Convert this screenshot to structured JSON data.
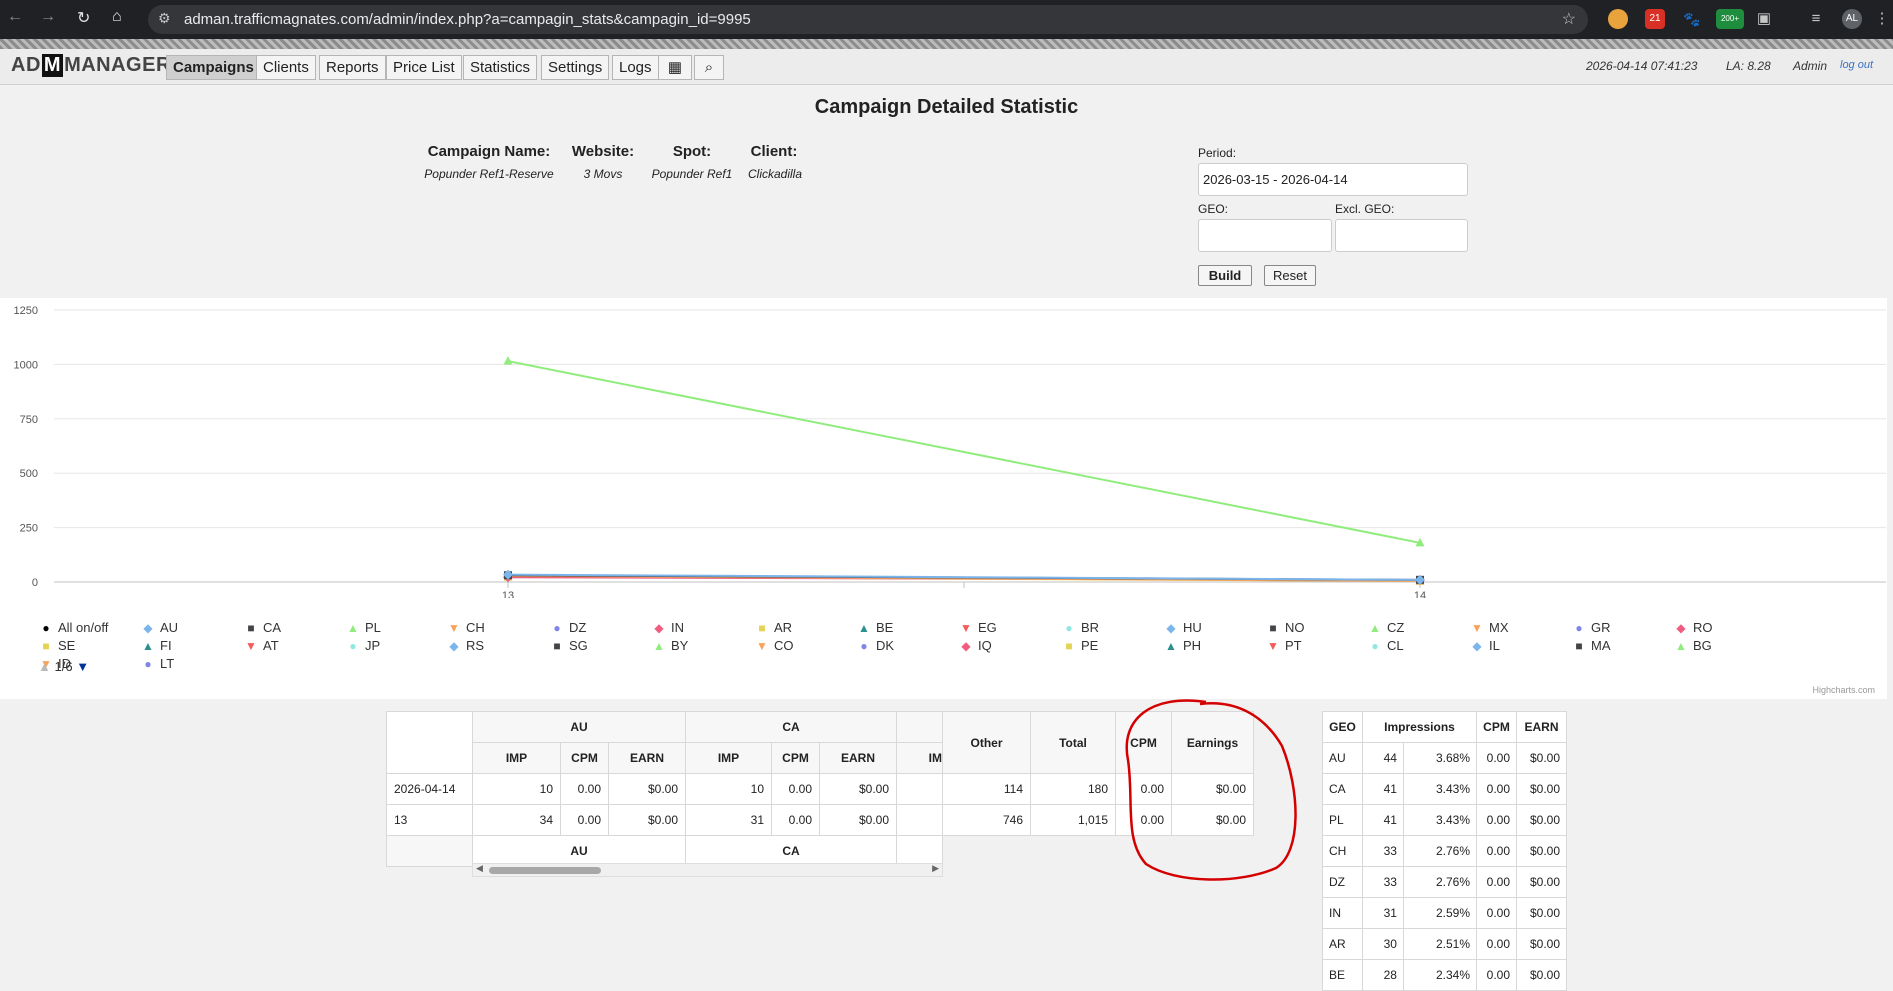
{
  "browser": {
    "url": "adman.trafficmagnates.com/admin/index.php?a=campagin_stats&campagin_id=9995",
    "ext_badge_1": "21",
    "ext_badge_2": "200+",
    "profile": "AL"
  },
  "app": {
    "logo_pre": "AD",
    "logo_m": "M",
    "logo_post": "MANAGER",
    "nav": [
      "Campaigns",
      "Clients",
      "Reports",
      "Price List",
      "Statistics",
      "Settings",
      "Logs"
    ],
    "active_nav": "Campaigns",
    "datetime": "2026-04-14 07:41:23",
    "la": "LA: 8.28",
    "user": "Admin",
    "logout": "log out"
  },
  "page": {
    "title": "Campaign Detailed Statistic",
    "info": [
      {
        "label": "Campaign Name:",
        "value": "Popunder Ref1-Reserve"
      },
      {
        "label": "Website:",
        "value": "3 Movs"
      },
      {
        "label": "Spot:",
        "value": "Popunder Ref1"
      },
      {
        "label": "Client:",
        "value": "Clickadilla"
      }
    ],
    "filters": {
      "period_label": "Period:",
      "period_value": "2026-03-15 - 2026-04-14",
      "geo_label": "GEO:",
      "geo_value": "",
      "excl_geo_label": "Excl. GEO:",
      "excl_geo_value": "",
      "build_label": "Build",
      "reset_label": "Reset"
    }
  },
  "chart_data": {
    "type": "line",
    "x": [
      "13",
      "14"
    ],
    "y_ticks": [
      0,
      250,
      500,
      750,
      1000,
      1250
    ],
    "ylim": [
      0,
      1250
    ],
    "series": [
      {
        "name": "Total",
        "values": [
          1015,
          180
        ],
        "color": "#90ed7d",
        "symbol": "triangle"
      },
      {
        "name": "AU",
        "values": [
          34,
          10
        ],
        "color": "#7cb5ec",
        "symbol": "diamond"
      },
      {
        "name": "CA",
        "values": [
          31,
          10
        ],
        "color": "#434348",
        "symbol": "square"
      },
      {
        "name": "CH",
        "values": [
          28,
          5
        ],
        "color": "#f7a35c",
        "symbol": "triangle"
      },
      {
        "name": "IN",
        "values": [
          22,
          9
        ],
        "color": "#f15c80",
        "symbol": "diamond"
      },
      {
        "name": "AR",
        "values": [
          25,
          5
        ],
        "color": "#e4d354",
        "symbol": "square"
      }
    ],
    "legend_all": "All on/off",
    "legend_items": [
      "AU",
      "CA",
      "PL",
      "CH",
      "DZ",
      "IN",
      "AR",
      "BE",
      "EG",
      "BR",
      "HU",
      "NO",
      "CZ",
      "MX",
      "GR",
      "RO",
      "SE",
      "FI",
      "AT",
      "JP",
      "RS",
      "SG",
      "BY",
      "CO",
      "DK",
      "IQ",
      "PE",
      "PH",
      "PT",
      "CL",
      "IL",
      "MA",
      "BG",
      "ID",
      "LT"
    ],
    "legend_colors": [
      "#7cb5ec",
      "#434348",
      "#90ed7d",
      "#f7a35c",
      "#8085e9",
      "#f15c80",
      "#e4d354",
      "#2b908f",
      "#f45b5b",
      "#91e8e1",
      "#7cb5ec",
      "#434348",
      "#90ed7d",
      "#f7a35c",
      "#8085e9",
      "#f15c80",
      "#e4d354",
      "#2b908f",
      "#f45b5b",
      "#91e8e1",
      "#7cb5ec",
      "#434348",
      "#90ed7d",
      "#f7a35c",
      "#8085e9",
      "#f15c80",
      "#e4d354",
      "#2b908f",
      "#f45b5b",
      "#91e8e1",
      "#7cb5ec",
      "#434348",
      "#90ed7d",
      "#f7a35c",
      "#8085e9"
    ],
    "legend_symbols": [
      "◆",
      "■",
      "▲",
      "▼",
      "●",
      "◆",
      "■",
      "▲",
      "▼",
      "●",
      "◆",
      "■",
      "▲",
      "▼",
      "●",
      "◆",
      "■",
      "▲",
      "▼",
      "●",
      "◆",
      "■",
      "▲",
      "▼",
      "●",
      "◆",
      "■",
      "▲",
      "▼",
      "●",
      "◆",
      "■",
      "▲",
      "▼",
      "●"
    ],
    "legend_page": "1/6",
    "credits": "Highcharts.com"
  },
  "main_table": {
    "groups": [
      "AU",
      "CA"
    ],
    "sub_headers": [
      "IMP",
      "CPM",
      "EARN"
    ],
    "cut_header": "IM",
    "other_label": "Other",
    "total_label": "Total",
    "cpm_label": "CPM",
    "earnings_label": "Earnings",
    "rows": [
      {
        "date": "2026-04-14",
        "au": [
          "10",
          "0.00",
          "$0.00"
        ],
        "ca": [
          "10",
          "0.00",
          "$0.00"
        ],
        "other": "114",
        "total": "180",
        "cpm": "0.00",
        "earnings": "$0.00"
      },
      {
        "date": "13",
        "au": [
          "34",
          "0.00",
          "$0.00"
        ],
        "ca": [
          "31",
          "0.00",
          "$0.00"
        ],
        "other": "746",
        "total": "1,015",
        "cpm": "0.00",
        "earnings": "$0.00"
      }
    ]
  },
  "geo_table": {
    "headers": [
      "GEO",
      "Impressions",
      "CPM",
      "EARN"
    ],
    "rows": [
      [
        "AU",
        "44",
        "3.68%",
        "0.00",
        "$0.00"
      ],
      [
        "CA",
        "41",
        "3.43%",
        "0.00",
        "$0.00"
      ],
      [
        "PL",
        "41",
        "3.43%",
        "0.00",
        "$0.00"
      ],
      [
        "CH",
        "33",
        "2.76%",
        "0.00",
        "$0.00"
      ],
      [
        "DZ",
        "33",
        "2.76%",
        "0.00",
        "$0.00"
      ],
      [
        "IN",
        "31",
        "2.59%",
        "0.00",
        "$0.00"
      ],
      [
        "AR",
        "30",
        "2.51%",
        "0.00",
        "$0.00"
      ],
      [
        "BE",
        "28",
        "2.34%",
        "0.00",
        "$0.00"
      ]
    ]
  },
  "colors": {
    "annotation": "#d40000"
  }
}
